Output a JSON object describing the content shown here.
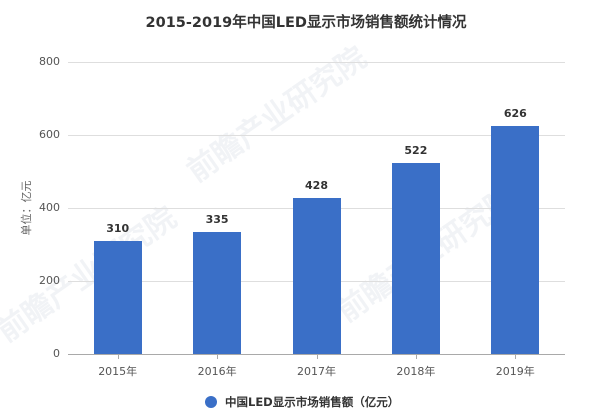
{
  "chart_data": {
    "type": "bar",
    "title": "2015-2019年中国LED显示市场销售额统计情况",
    "categories": [
      "2015年",
      "2016年",
      "2017年",
      "2018年",
      "2019年"
    ],
    "series": [
      {
        "name": "中国LED显示市场销售额（亿元）",
        "values": [
          310,
          335,
          428,
          522,
          626
        ],
        "color": "#3a6fc7"
      }
    ],
    "xlabel": "",
    "ylabel": "单位：亿元",
    "ylim": [
      0,
      800
    ],
    "yticks": [
      "800",
      "600",
      "400",
      "200",
      "0"
    ],
    "grid": true,
    "legend_position": "bottom",
    "data_labels": [
      "310",
      "335",
      "428",
      "522",
      "626"
    ]
  },
  "watermark": {
    "text1": "前瞻产业研究院",
    "text2": "前瞻产业研究院"
  }
}
